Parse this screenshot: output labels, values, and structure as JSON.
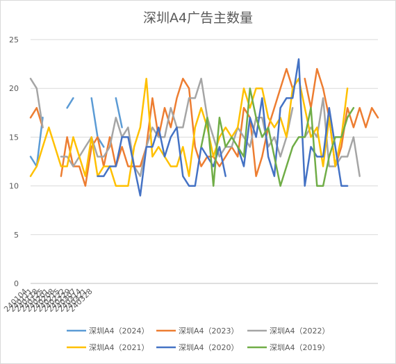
{
  "chart_data": {
    "type": "line",
    "title": "深圳A4广告主数量",
    "xlabel": "",
    "ylabel": "",
    "ylim": [
      0,
      25
    ],
    "yticks": [
      0,
      5,
      10,
      15,
      20,
      25
    ],
    "x_tick_labels": [
      "240104",
      "240111",
      "240118",
      "240125",
      "240201",
      "240208",
      "240215",
      "240222",
      "240229",
      "240307",
      "240314",
      "240321",
      "240328"
    ],
    "grid": "horizontal",
    "legend_position": "bottom",
    "series": [
      {
        "name": "深圳A4（2024）",
        "color": "#5b9bd5",
        "values": [
          13,
          12,
          17,
          null,
          null,
          null,
          18,
          19,
          null,
          null,
          19,
          15,
          14,
          null,
          19,
          16
        ]
      },
      {
        "name": "深圳A4（2023）",
        "color": "#ed7d31",
        "values": [
          17,
          18,
          16,
          null,
          null,
          11,
          15,
          12,
          12,
          10,
          14,
          15,
          12,
          15,
          12,
          14,
          12,
          12,
          12,
          14,
          19,
          15,
          18,
          16,
          19,
          21,
          20,
          14,
          12,
          13,
          13,
          12,
          13,
          14,
          13,
          18,
          17,
          11,
          13,
          16,
          18,
          20,
          22,
          20,
          null,
          21,
          18,
          22,
          20,
          17,
          12,
          14,
          18,
          16,
          18,
          16,
          18,
          17
        ]
      },
      {
        "name": "深圳A4（2022）",
        "color": "#a5a5a5",
        "values": [
          21,
          20,
          16,
          null,
          null,
          13,
          13,
          12,
          13,
          14,
          15,
          13,
          13,
          14,
          17,
          15,
          16,
          12,
          11,
          14,
          16,
          15,
          15,
          18,
          16,
          16,
          19,
          19,
          21,
          17,
          15,
          13,
          14,
          14,
          16,
          15,
          14,
          17,
          17,
          14,
          15,
          13,
          15,
          18,
          null,
          15,
          16,
          15,
          19,
          12,
          12,
          13,
          13,
          15,
          11
        ]
      },
      {
        "name": "深圳A4（2021）",
        "color": "#ffc000",
        "values": [
          11,
          12,
          14,
          16,
          14,
          12,
          12,
          15,
          13,
          11,
          15,
          11,
          12,
          12,
          10,
          10,
          10,
          14,
          16,
          21,
          13,
          14,
          13,
          12,
          12,
          14,
          11,
          16,
          18,
          16,
          13,
          15,
          16,
          15,
          16,
          20,
          18,
          20,
          20,
          17,
          16,
          17,
          15,
          20,
          21,
          18,
          15,
          16,
          12,
          17,
          12,
          15,
          20
        ]
      },
      {
        "name": "深圳A4（2020）",
        "color": "#4472c4",
        "values": [
          null,
          null,
          null,
          null,
          null,
          null,
          null,
          null,
          null,
          null,
          null,
          11,
          11,
          12,
          12,
          15,
          15,
          12,
          9,
          14,
          14,
          16,
          13,
          15,
          16,
          11,
          10,
          10,
          14,
          13,
          12,
          14,
          11,
          null,
          14,
          12,
          17,
          15,
          19,
          13,
          11,
          18,
          19,
          19,
          23,
          10,
          14,
          13,
          13,
          18,
          14,
          10,
          10
        ]
      },
      {
        "name": "深圳A4（2019）",
        "color": "#70ad47",
        "values": [
          null,
          null,
          null,
          null,
          null,
          null,
          null,
          null,
          null,
          null,
          null,
          null,
          null,
          null,
          null,
          null,
          null,
          null,
          null,
          null,
          null,
          null,
          null,
          null,
          null,
          null,
          null,
          null,
          14,
          17,
          10,
          17,
          14,
          15,
          14,
          13,
          20,
          17,
          15,
          16,
          13,
          10,
          12,
          14,
          15,
          15,
          18,
          10,
          10,
          13,
          15,
          15,
          17,
          18
        ]
      }
    ]
  }
}
